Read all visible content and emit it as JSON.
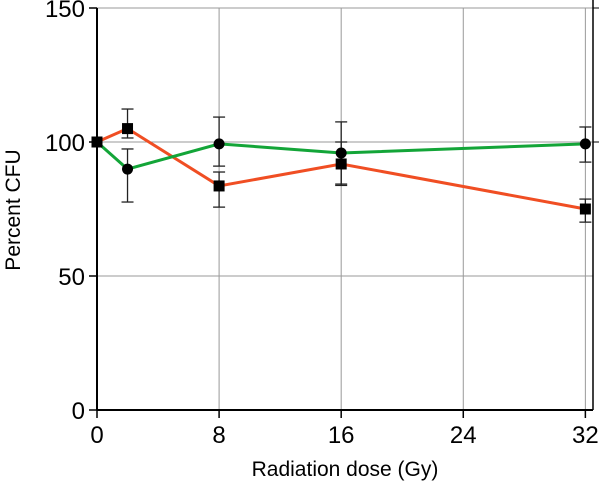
{
  "chart_data": {
    "type": "line",
    "title": "",
    "xlabel": "Radiation dose (Gy)",
    "ylabel": "Percent CFU",
    "xlim": [
      0,
      32.5
    ],
    "ylim": [
      0,
      150
    ],
    "xticks": [
      0,
      8,
      16,
      24,
      32
    ],
    "yticks": [
      0,
      50,
      100,
      150
    ],
    "grid": true,
    "series": [
      {
        "name": "squares",
        "color": "#f04e23",
        "marker": "square",
        "x": [
          0,
          2,
          8,
          16,
          32
        ],
        "y": [
          100,
          105,
          83.6,
          91.8,
          75
        ],
        "err_low": [
          100,
          101.5,
          75.7,
          83.8,
          70.1
        ],
        "err_high": [
          100,
          112.3,
          88.8,
          100,
          78.7
        ]
      },
      {
        "name": "circles",
        "color": "#13a538",
        "marker": "circle",
        "x": [
          0,
          2,
          8,
          16,
          32
        ],
        "y": [
          100,
          89.9,
          99.3,
          95.9,
          99.3
        ],
        "err_low": [
          100,
          77.6,
          91,
          84.3,
          92.5
        ],
        "err_high": [
          100,
          97.4,
          109.3,
          107.5,
          105.6
        ]
      }
    ]
  }
}
